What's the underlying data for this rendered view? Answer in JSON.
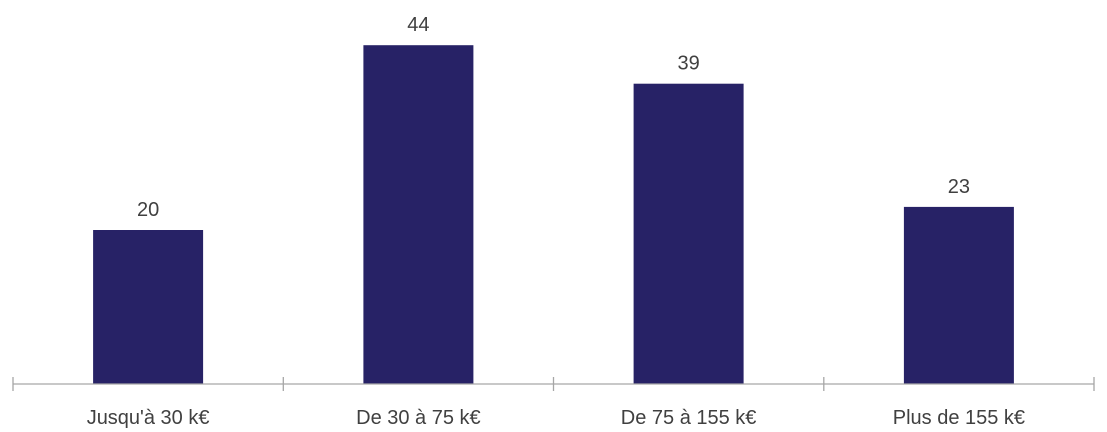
{
  "chart_data": {
    "type": "bar",
    "categories": [
      "Jusqu'à 30 k€",
      "De 30 à 75 k€",
      "De 75 à 155 k€",
      "Plus de 155 k€"
    ],
    "values": [
      20,
      44,
      39,
      23
    ],
    "title": "",
    "xlabel": "",
    "ylabel": "",
    "ylim": [
      0,
      50
    ],
    "grid": false,
    "legend": "none",
    "data_labels": true,
    "colors": {
      "bar": "#272266",
      "axis": "#a6a6a6",
      "text": "#404040"
    }
  }
}
